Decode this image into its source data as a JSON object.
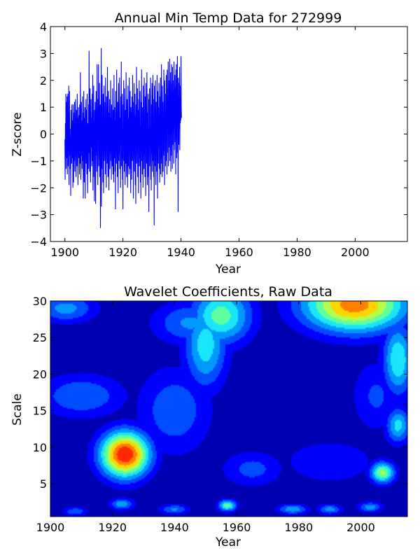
{
  "chart_data": [
    {
      "type": "line",
      "title": "Annual Min Temp Data for 272999",
      "xlabel": "Year",
      "ylabel": "Z-score",
      "xlim": [
        1895,
        2018
      ],
      "ylim": [
        -4,
        4
      ],
      "xticks": [
        1900,
        1920,
        1940,
        1960,
        1980,
        2000
      ],
      "yticks": [
        -4,
        -3,
        -2,
        -1,
        0,
        1,
        2,
        3,
        4
      ],
      "ytick_labels": [
        "−4",
        "−3",
        "−2",
        "−1",
        "0",
        "1",
        "2",
        "3",
        "4"
      ],
      "grid": false,
      "series": [
        {
          "color": "#0000ff",
          "x_start": 1900,
          "x_step": 0.0833333,
          "values": [
            -0.2,
            -1.7,
            0.4,
            -0.8,
            1.5,
            -1.3,
            1.2,
            -0.5,
            -0.9,
            1.4,
            -1.5,
            0.1,
            1.5,
            -1.2,
            0.6,
            -0.6,
            1.8,
            -1.9,
            -0.3,
            1.6,
            -0.8,
            0.2,
            -1.3,
            -0.1,
            -2.3,
            0.9,
            -0.7,
            0.3,
            -1.1,
            1.1,
            -0.4,
            -0.9,
            0.5,
            -2.0,
            1.1,
            -0.6,
            -1.8,
            -0.2,
            0.8,
            -1.0,
            1.2,
            -1.4,
            -0.5,
            0.4,
            1.3,
            -0.8,
            -1.6,
            0.2,
            0.9,
            -0.3,
            -1.2,
            1.5,
            -0.7,
            0.6,
            -1.9,
            0.1,
            1.0,
            -0.9,
            -0.2,
            0.7,
            -1.5,
            1.1,
            -0.4,
            -1.1,
            2.3,
            -0.6,
            -1.7,
            0.3,
            1.2,
            -0.8,
            0.5,
            -1.3,
            -0.1,
            1.4,
            -1.0,
            0.8,
            -2.4,
            -0.3,
            1.6,
            -0.5,
            -1.8,
            0.6,
            -0.9,
            1.0,
            -2.4,
            0.3,
            -0.6,
            1.3,
            -1.1,
            -0.2,
            0.9,
            -1.5,
            1.5,
            -0.8,
            -2.2,
            0.4,
            0.1,
            -1.3,
            1.1,
            -0.7,
            3.1,
            -0.4,
            -1.4,
            0.7,
            1.7,
            -0.9,
            -1.8,
            0.2,
            1.3,
            -0.5,
            0.6,
            -1.2,
            -0.2,
            1.5,
            -1.0,
            2.2,
            -2.1,
            0.3,
            -0.6,
            1.8,
            -1.6,
            0.5,
            -2.5,
            0.9,
            -0.3,
            1.2,
            -1.1,
            -2.6,
            0.4,
            1.6,
            -0.8,
            0.2,
            -1.4,
            2.6,
            -0.5,
            0.7,
            -1.9,
            1.3,
            -0.2,
            2.6,
            -1.2,
            0.3,
            -0.9,
            1.9,
            -1.6,
            0.6,
            1.1,
            -3.5,
            0.8,
            -0.4,
            3.2,
            -2.7,
            1.0,
            -1.3,
            2.2,
            -0.7,
            0.4,
            -1.8,
            1.5,
            -0.1,
            -2.2,
            0.9,
            1.8,
            -1.0,
            0.3,
            -0.6,
            1.2,
            -1.5,
            2.1,
            -0.8,
            0.5,
            -2.0,
            1.4,
            -0.3,
            0.7,
            -1.1,
            2.5,
            -0.5,
            -1.6,
            0.2,
            1.6,
            -0.9,
            -2.1,
            0.8,
            -0.2,
            1.3,
            -1.3,
            0.4,
            -0.7,
            2.0,
            -1.0,
            0.6,
            -1.7,
            1.1,
            -0.4,
            0.2,
            -1.2,
            1.7,
            -0.6,
            -1.5,
            0.9,
            0.3,
            -1.8,
            2.2,
            -0.3,
            -0.9,
            1.0,
            -1.4,
            0.5,
            -2.8,
            1.6,
            -0.5,
            0.7,
            -1.1,
            2.4,
            -0.8,
            0.1,
            -1.6,
            1.2,
            -0.2,
            -2.2,
            0.8,
            1.9,
            -1.0,
            0.4,
            -0.7,
            2.1,
            -1.3,
            -0.1,
            0.6,
            -2.0,
            1.4,
            -0.4,
            2.7,
            -1.2,
            0.3,
            -0.9,
            1.5,
            -1.7,
            0.2,
            -2.8,
            1.1,
            -0.6,
            2.0,
            -1.0,
            0.5,
            -1.4,
            1.7,
            -0.3,
            -1.9,
            0.9,
            0.1,
            -1.1,
            2.3,
            -0.5,
            -1.6,
            0.7,
            1.3,
            -0.8,
            -2.0,
            0.4,
            1.8,
            -1.2,
            0.6,
            -0.2,
            -1.5,
            2.1,
            -0.7,
            0.3,
            -1.3,
            1.6,
            -0.9,
            -2.2,
            1.0,
            -0.4,
            0.8,
            -1.7,
            1.4,
            -0.1,
            -1.0,
            2.2,
            -0.6,
            0.5,
            -2.4,
            1.2,
            -0.3,
            1.9,
            -1.4,
            0.2,
            -0.8,
            1.5,
            -1.9,
            0.7,
            -2.6,
            1.1,
            -0.5,
            2.5,
            -1.1,
            0.4,
            -0.7,
            1.7,
            -1.6,
            -0.2,
            0.9,
            -2.2,
            1.3,
            -0.4,
            2.0,
            -1.2,
            0.6,
            -0.9,
            1.6,
            -1.8,
            0.3,
            -2.4,
            1.2,
            -0.6,
            2.4,
            -1.0,
            0.5,
            -1.5,
            1.0,
            -0.2,
            -2.0,
            1.8,
            -0.7,
            0.4,
            -1.3,
            2.1,
            -0.8,
            0.1,
            -1.6,
            1.4,
            -0.3,
            -2.3,
            1.9,
            -0.5,
            0.7,
            -1.1,
            2.3,
            -0.9,
            -1.9,
            0.8,
            -0.4,
            1.5,
            -1.6,
            0.2,
            -2.9,
            1.3,
            -0.6,
            1.7,
            -1.2,
            0.6,
            -0.3,
            2.1,
            -1.7,
            0.3,
            -2.1,
            1.1,
            -0.7,
            1.9,
            -0.8,
            -1.4,
            0.7,
            2.2,
            -1.0,
            0.4,
            -1.6,
            1.3,
            -3.4,
            1.8,
            -0.5,
            0.9,
            -1.2,
            2.0,
            -0.6,
            -1.9,
            1.2,
            -0.3,
            0.5,
            -1.4,
            2.2,
            -0.9,
            -2.4,
            1.6,
            0.2,
            -1.1,
            1.0,
            -0.5,
            1.9,
            -1.3,
            0.7,
            -1.8,
            1.4,
            -0.2,
            2.1,
            -1.5,
            0.3,
            -0.9,
            2.6,
            -1.1,
            0.6,
            -1.6,
            1.8,
            -0.4,
            1.2,
            -1.4,
            0.4,
            -0.8,
            2.4,
            -0.6,
            1.0,
            -1.9,
            2.0,
            -0.3,
            1.5,
            -1.2,
            0.8,
            -1.0,
            2.2,
            -0.1,
            1.1,
            -1.5,
            2.4,
            0.3,
            1.7,
            -0.7,
            2.7,
            -1.2,
            0.9,
            0.1,
            2.0,
            -0.5,
            2.8,
            -1.0,
            1.4,
            0.6,
            2.3,
            -1.4,
            1.9,
            -0.8,
            2.6,
            0.2,
            1.2,
            -1.3,
            2.5,
            -0.4,
            1.6,
            0.4,
            2.0,
            -1.1,
            2.7,
            -0.6,
            1.3,
            0.8,
            2.2,
            -0.3,
            1.7,
            -1.5,
            2.4,
            -0.1,
            2.6,
            -0.9,
            1.8,
            0.5,
            2.9,
            -0.7,
            1.4,
            -2.9,
            2.1,
            0.6,
            -0.4,
            1.9,
            0.2,
            2.5,
            -0.6,
            1.3,
            0.4,
            1.8,
            0.5,
            2.9,
            1.0,
            0.6
          ]
        }
      ]
    },
    {
      "type": "heatmap",
      "title": "Wavelet Coefficients, Raw Data",
      "xlabel": "Year",
      "ylabel": "Scale",
      "xlim": [
        1900,
        2015
      ],
      "ylim": [
        0.5,
        30
      ],
      "xticks": [
        1900,
        1920,
        1940,
        1960,
        1980,
        2000
      ],
      "yticks": [
        5,
        10,
        15,
        20,
        25,
        30
      ],
      "colormap": "jet",
      "colors": [
        "#0000b3",
        "#0000ff",
        "#004cff",
        "#0099ff",
        "#1ae6fa",
        "#5fffa0",
        "#b3ff4c",
        "#ffd500",
        "#ff8000",
        "#ff2a00",
        "#c80000"
      ],
      "hotspots": [
        {
          "year": 1924,
          "scale": 9,
          "level": 10,
          "sx": 8,
          "sy": 3.2
        },
        {
          "year": 1998,
          "scale": 29.5,
          "level": 8.6,
          "sx": 17,
          "sy": 3.8
        },
        {
          "year": 1955,
          "scale": 28,
          "level": 5.5,
          "sx": 10,
          "sy": 4
        },
        {
          "year": 1950,
          "scale": 24,
          "level": 4.6,
          "sx": 7,
          "sy": 6
        },
        {
          "year": 2012,
          "scale": 22,
          "level": 5,
          "sx": 5,
          "sy": 5
        },
        {
          "year": 2007,
          "scale": 6.5,
          "level": 6.2,
          "sx": 4,
          "sy": 1.5
        },
        {
          "year": 2012,
          "scale": 13,
          "level": 4.4,
          "sx": 4,
          "sy": 2.5
        },
        {
          "year": 1910,
          "scale": 17,
          "level": 3,
          "sx": 14,
          "sy": 3
        },
        {
          "year": 1940,
          "scale": 15,
          "level": 2.8,
          "sx": 12,
          "sy": 6
        },
        {
          "year": 1945,
          "scale": 27,
          "level": 3.2,
          "sx": 12,
          "sy": 3
        },
        {
          "year": 1905,
          "scale": 29,
          "level": 3.4,
          "sx": 10,
          "sy": 2
        },
        {
          "year": 1965,
          "scale": 7,
          "level": 2.4,
          "sx": 10,
          "sy": 2.5
        },
        {
          "year": 1990,
          "scale": 8,
          "level": 2,
          "sx": 15,
          "sy": 3
        },
        {
          "year": 2005,
          "scale": 17,
          "level": 2.2,
          "sx": 8,
          "sy": 5
        },
        {
          "year": 1957,
          "scale": 2,
          "level": 5.6,
          "sx": 3,
          "sy": 0.8
        },
        {
          "year": 1923,
          "scale": 2.2,
          "level": 3.8,
          "sx": 4,
          "sy": 0.8
        },
        {
          "year": 1978,
          "scale": 1.5,
          "level": 3.8,
          "sx": 5,
          "sy": 0.7
        },
        {
          "year": 1990,
          "scale": 1.5,
          "level": 3.5,
          "sx": 4,
          "sy": 0.7
        },
        {
          "year": 2003,
          "scale": 1.8,
          "level": 3.6,
          "sx": 4,
          "sy": 0.7
        },
        {
          "year": 1940,
          "scale": 1.5,
          "level": 3.2,
          "sx": 5,
          "sy": 0.7
        },
        {
          "year": 1908,
          "scale": 1.2,
          "level": 3,
          "sx": 4,
          "sy": 0.6
        }
      ]
    }
  ]
}
